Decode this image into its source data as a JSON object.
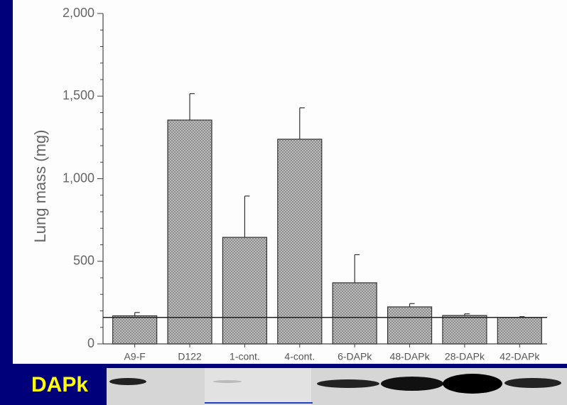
{
  "chart_data": {
    "type": "bar",
    "y_label": "Lung mass (mg)",
    "categories": [
      "A9-F",
      "D122",
      "1-cont.",
      "4-cont.",
      "6-DAPk",
      "48-DAPk",
      "28-DAPk",
      "42-DAPk"
    ],
    "values": [
      170,
      1355,
      645,
      1239,
      370,
      224,
      172,
      160
    ],
    "errors": [
      20,
      160,
      250,
      190,
      170,
      20,
      10,
      5
    ],
    "color": "#b8b8b8",
    "reference_line": 160,
    "ylim": [
      0,
      2000
    ],
    "yticks": [
      0,
      {
        "value": 500,
        "label": "500"
      },
      {
        "value": 1000,
        "label": "1,000"
      },
      {
        "value": 1500,
        "label": "1,500"
      },
      {
        "value": 2000,
        "label": "2,000"
      }
    ],
    "minor_yticks": [
      100,
      200,
      300,
      400,
      600,
      700,
      800,
      900,
      1100,
      1200,
      1300,
      1400,
      1600,
      1700,
      1800,
      1900
    ]
  },
  "blot_label": "DAPk"
}
